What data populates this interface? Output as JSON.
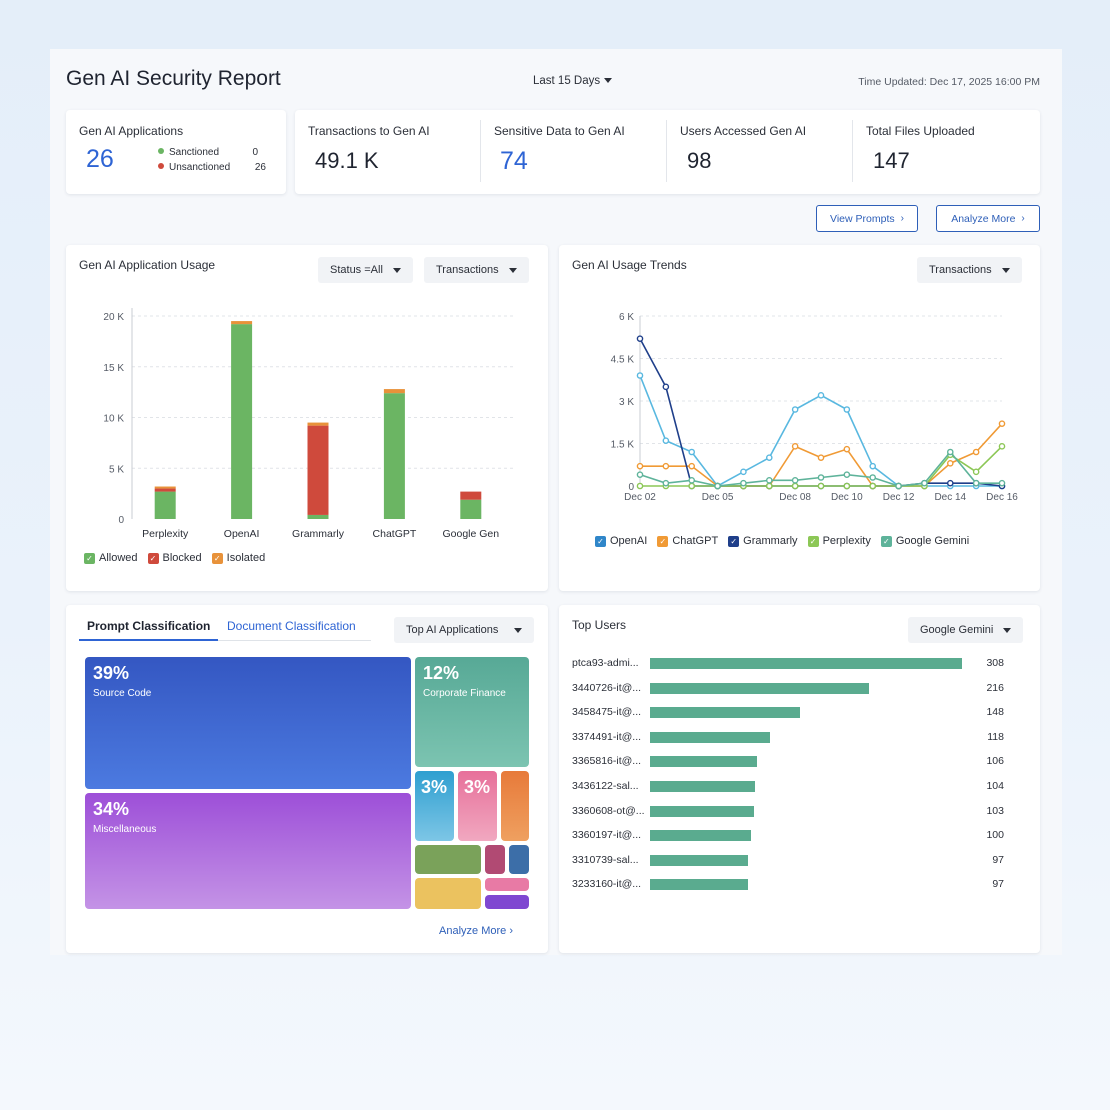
{
  "header": {
    "title": "Gen AI Security Report",
    "range": "Last 15 Days",
    "updated": "Time Updated: Dec 17, 2025 16:00 PM"
  },
  "kpis": {
    "apps": {
      "label": "Gen AI Applications",
      "value": "26",
      "sanctioned_label": "Sanctioned",
      "sanctioned_value": "0",
      "unsanctioned_label": "Unsanctioned",
      "unsanctioned_value": "26"
    },
    "transactions": {
      "label": "Transactions to Gen AI",
      "value": "49.1 K"
    },
    "sensitive": {
      "label": "Sensitive Data to Gen AI",
      "value": "74"
    },
    "users": {
      "label": "Users Accessed Gen AI",
      "value": "98"
    },
    "files": {
      "label": "Total Files Uploaded",
      "value": "147"
    }
  },
  "actions": {
    "view_prompts": "View Prompts",
    "analyze_more": "Analyze More"
  },
  "usage": {
    "title": "Gen AI Application Usage",
    "status_filter": "Status =All",
    "metric_filter": "Transactions",
    "legend": [
      "Allowed",
      "Blocked",
      "Isolated"
    ]
  },
  "trends": {
    "title": "Gen AI Usage Trends",
    "metric_filter": "Transactions",
    "legend": [
      "OpenAI",
      "ChatGPT",
      "Grammarly",
      "Perplexity",
      "Google Gemini"
    ]
  },
  "classification": {
    "tab_prompt": "Prompt Classification",
    "tab_document": "Document Classification",
    "filter": "Top AI Applications",
    "cells": [
      {
        "pct": "39%",
        "name": "Source Code"
      },
      {
        "pct": "12%",
        "name": "Corporate Finance"
      },
      {
        "pct": "34%",
        "name": "Miscellaneous"
      },
      {
        "pct": "3%",
        "name": ""
      },
      {
        "pct": "3%",
        "name": ""
      }
    ],
    "analyze_more": "Analyze More"
  },
  "top_users": {
    "title": "Top Users",
    "filter": "Google Gemini",
    "rows": [
      {
        "user": "ptca93-admi...",
        "value": 308
      },
      {
        "user": "3440726-it@...",
        "value": 216
      },
      {
        "user": "3458475-it@...",
        "value": 148
      },
      {
        "user": "3374491-it@...",
        "value": 118
      },
      {
        "user": "3365816-it@...",
        "value": 106
      },
      {
        "user": "3436122-sal...",
        "value": 104
      },
      {
        "user": "3360608-ot@...",
        "value": 103
      },
      {
        "user": "3360197-it@...",
        "value": 100
      },
      {
        "user": "3310739-sal...",
        "value": 97
      },
      {
        "user": "3233160-it@...",
        "value": 97
      }
    ]
  },
  "colors": {
    "allowed": "#6bb563",
    "blocked": "#cf4a3c",
    "isolated": "#e8923a",
    "openai": "#25458f",
    "chatgpt": "#f09a35",
    "grammarly": "#1f3f8a",
    "perplexity": "#8cc756",
    "gemini": "#5eb39a",
    "trend_blue": "#59b8e0",
    "accent": "#2e64d4"
  },
  "chart_data": [
    {
      "type": "bar",
      "stacked": true,
      "categories": [
        "Perplexity",
        "OpenAI",
        "Grammarly",
        "ChatGPT",
        "Google Gen"
      ],
      "series": [
        {
          "name": "Allowed",
          "values": [
            2700,
            19200,
            400,
            12400,
            1900
          ]
        },
        {
          "name": "Blocked",
          "values": [
            300,
            0,
            8800,
            0,
            800
          ]
        },
        {
          "name": "Isolated",
          "values": [
            200,
            300,
            300,
            400,
            0
          ]
        }
      ],
      "yticks": [
        "0",
        "5 K",
        "10 K",
        "15 K",
        "20 K"
      ],
      "ylim": [
        0,
        20000
      ],
      "legend": "bottom-left",
      "grid": true
    },
    {
      "type": "line",
      "x": [
        "Dec 02",
        "Dec 03",
        "Dec 04",
        "Dec 05",
        "Dec 06",
        "Dec 07",
        "Dec 08",
        "Dec 09",
        "Dec 10",
        "Dec 11",
        "Dec 12",
        "Dec 13",
        "Dec 14",
        "Dec 15",
        "Dec 16"
      ],
      "xticks": [
        "Dec 02",
        "Dec 05",
        "Dec 08",
        "Dec 10",
        "Dec 12",
        "Dec 14",
        "Dec 16"
      ],
      "series": [
        {
          "name": "OpenAI",
          "values": [
            3900,
            1600,
            1200,
            0,
            500,
            1000,
            2700,
            3200,
            2700,
            700,
            0,
            0,
            0,
            0,
            0
          ]
        },
        {
          "name": "ChatGPT",
          "values": [
            700,
            700,
            700,
            0,
            0,
            0,
            1400,
            1000,
            1300,
            0,
            0,
            0,
            800,
            1200,
            2200
          ]
        },
        {
          "name": "Grammarly",
          "values": [
            5200,
            3500,
            0,
            0,
            0,
            0,
            0,
            0,
            0,
            0,
            0,
            100,
            100,
            100,
            0
          ]
        },
        {
          "name": "Perplexity",
          "values": [
            0,
            0,
            0,
            0,
            0,
            0,
            0,
            0,
            0,
            0,
            0,
            0,
            1100,
            500,
            1400
          ]
        },
        {
          "name": "Google Gemini",
          "values": [
            400,
            100,
            200,
            0,
            100,
            200,
            200,
            300,
            400,
            300,
            0,
            100,
            1200,
            100,
            100
          ]
        }
      ],
      "yticks": [
        "0",
        "1.5 K",
        "3 K",
        "4.5 K",
        "6 K"
      ],
      "ylim": [
        0,
        6000
      ],
      "legend": "bottom",
      "grid": true
    }
  ]
}
